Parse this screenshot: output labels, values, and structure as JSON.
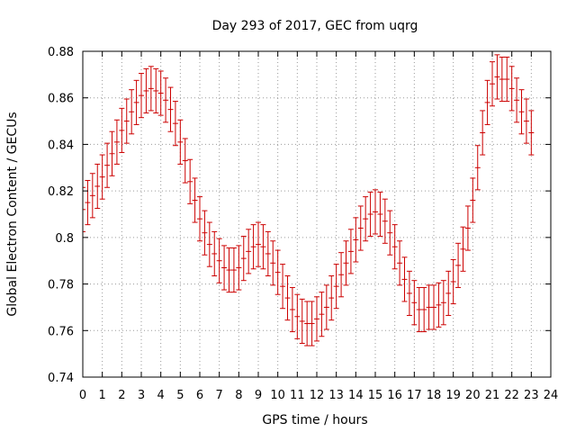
{
  "chart_data": {
    "type": "scatter",
    "title": "Day 293 of 2017, GEC from uqrg",
    "xlabel": "GPS time / hours",
    "ylabel": "Global Electron Content / GECUs",
    "xlim": [
      0,
      24
    ],
    "ylim": [
      0.74,
      0.88
    ],
    "x_ticks": [
      0,
      1,
      2,
      3,
      4,
      5,
      6,
      7,
      8,
      9,
      10,
      11,
      12,
      13,
      14,
      15,
      16,
      17,
      18,
      19,
      20,
      21,
      22,
      23,
      24
    ],
    "x_tick_labels": [
      "0",
      "1",
      "2",
      "3",
      "4",
      "5",
      "6",
      "7",
      "8",
      "9",
      "10",
      "11",
      "12",
      "13",
      "14",
      "15",
      "16",
      "17",
      "18",
      "19",
      "20",
      "21",
      "22",
      "23",
      "24"
    ],
    "y_ticks": [
      0.74,
      0.76,
      0.78,
      0.8,
      0.82,
      0.84,
      0.86,
      0.88
    ],
    "y_tick_labels": [
      "0.74",
      "0.76",
      "0.78",
      "0.8",
      "0.82",
      "0.84",
      "0.86",
      "0.88"
    ],
    "grid": true,
    "color": "#cc0000",
    "error": 0.0095,
    "x_step": 0.25,
    "values": [
      0.812,
      0.815,
      0.818,
      0.822,
      0.826,
      0.831,
      0.836,
      0.841,
      0.846,
      0.85,
      0.854,
      0.858,
      0.861,
      0.863,
      0.864,
      0.863,
      0.862,
      0.859,
      0.855,
      0.849,
      0.841,
      0.833,
      0.824,
      0.816,
      0.808,
      0.802,
      0.797,
      0.793,
      0.79,
      0.787,
      0.786,
      0.786,
      0.787,
      0.791,
      0.794,
      0.796,
      0.797,
      0.796,
      0.793,
      0.789,
      0.785,
      0.779,
      0.774,
      0.769,
      0.766,
      0.764,
      0.763,
      0.763,
      0.765,
      0.767,
      0.77,
      0.774,
      0.779,
      0.784,
      0.789,
      0.794,
      0.799,
      0.804,
      0.808,
      0.81,
      0.811,
      0.81,
      0.807,
      0.802,
      0.796,
      0.789,
      0.782,
      0.776,
      0.772,
      0.769,
      0.769,
      0.77,
      0.77,
      0.771,
      0.772,
      0.776,
      0.781,
      0.788,
      0.795,
      0.804,
      0.816,
      0.83,
      0.845,
      0.858,
      0.866,
      0.869,
      0.868,
      0.868,
      0.864,
      0.859,
      0.854,
      0.85,
      0.845
    ]
  }
}
